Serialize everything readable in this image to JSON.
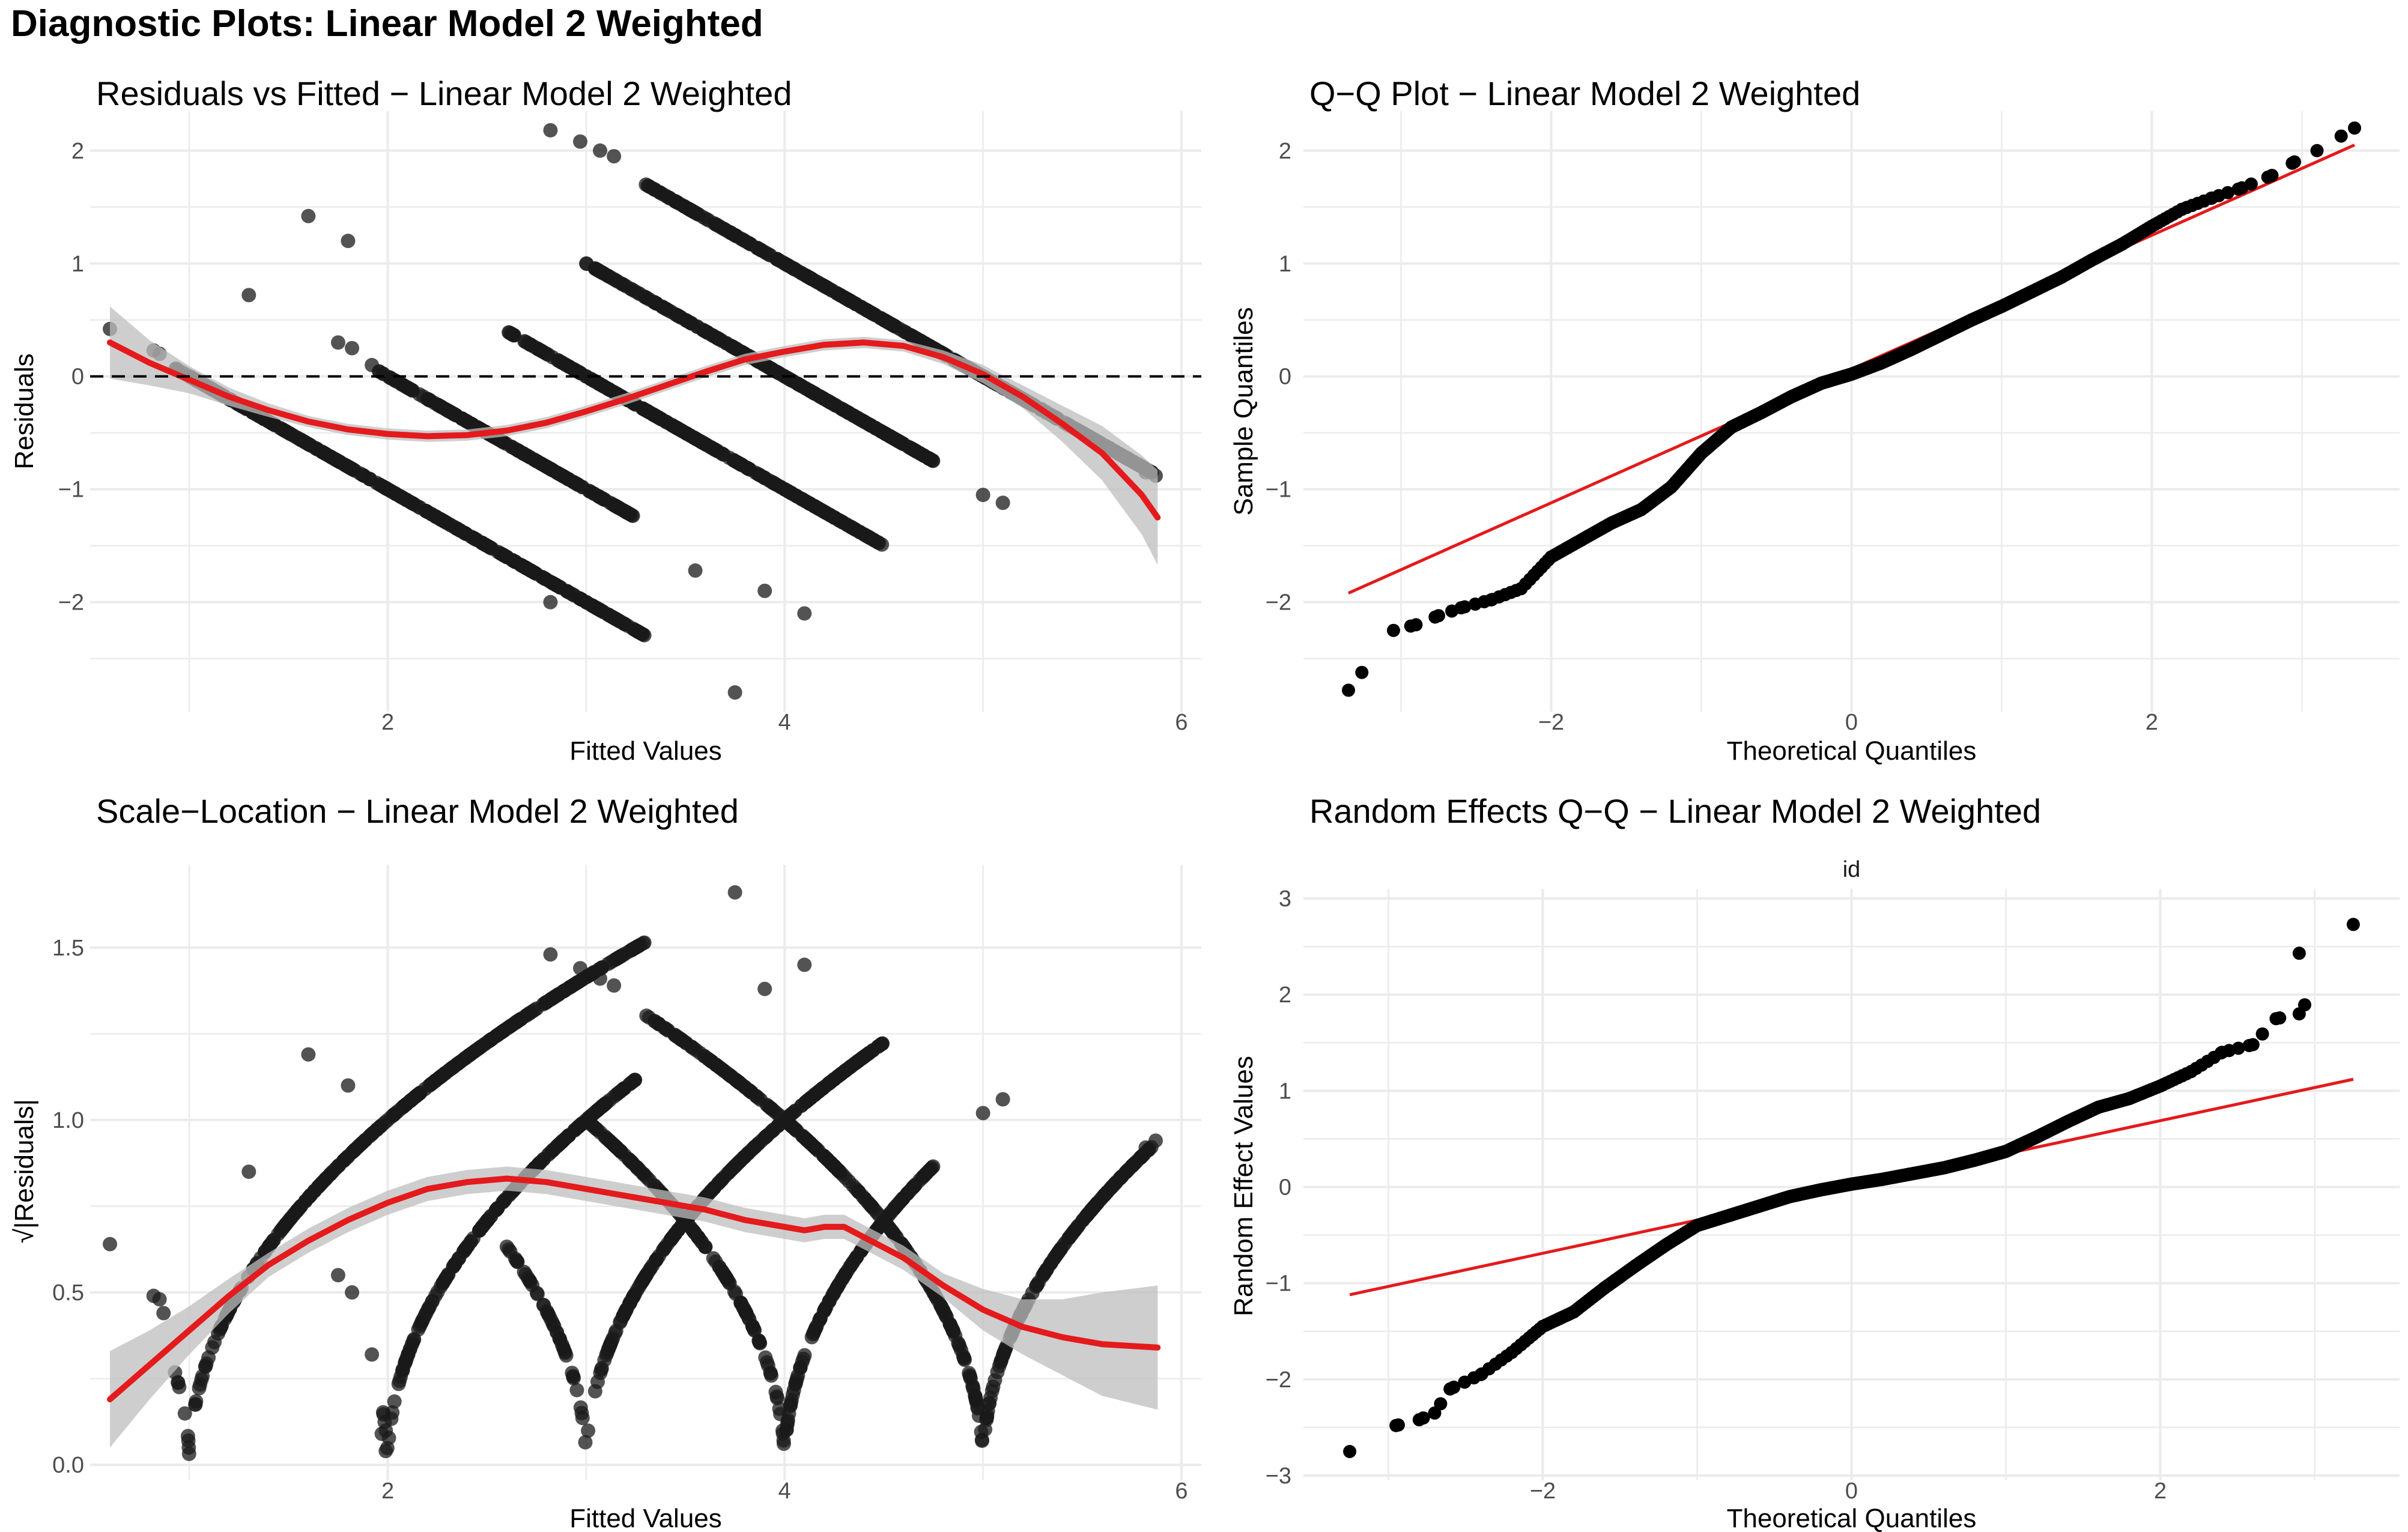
{
  "page_title": "Diagnostic Plots: Linear Model 2 Weighted",
  "colors": {
    "point": "#1a1a1a",
    "smooth": "#e41a1c",
    "band": "#bdbdbd",
    "grid": "#ebebeb",
    "refline": "#000000"
  },
  "chart_data": [
    {
      "id": "rvf",
      "type": "scatter",
      "title": "Residuals vs Fitted − Linear Model 2 Weighted",
      "xlabel": "Fitted Values",
      "ylabel": "Residuals",
      "xlim": [
        0.5,
        6.1
      ],
      "ylim": [
        -2.97,
        2.35
      ],
      "xticks": [
        2,
        4,
        6
      ],
      "xtick_labels": [
        "2",
        "4",
        "6"
      ],
      "yticks": [
        -2,
        -1,
        0,
        1,
        2
      ],
      "ytick_labels": [
        "−2",
        "−1",
        "0",
        "1",
        "2"
      ],
      "hline": 0,
      "stripes": [
        {
          "y": 1,
          "x": [
            0.92,
            3.3
          ]
        },
        {
          "y": 2,
          "x": [
            1.95,
            3.25
          ]
        },
        {
          "y": 3,
          "x": [
            2.6,
            4.5
          ]
        },
        {
          "y": 4,
          "x": [
            3.0,
            4.75
          ]
        },
        {
          "y": 5,
          "x": [
            3.3,
            5.85
          ]
        }
      ],
      "points": [
        [
          0.6,
          0.42
        ],
        [
          0.82,
          0.23
        ],
        [
          0.85,
          0.2
        ],
        [
          1.3,
          0.72
        ],
        [
          1.6,
          1.42
        ],
        [
          1.8,
          1.2
        ],
        [
          1.75,
          0.3
        ],
        [
          1.82,
          0.25
        ],
        [
          1.92,
          0.1
        ],
        [
          2.82,
          2.18
        ],
        [
          2.97,
          2.08
        ],
        [
          3.07,
          2.0
        ],
        [
          3.14,
          1.95
        ],
        [
          2.82,
          -2.0
        ],
        [
          3.25,
          -2.25
        ],
        [
          3.55,
          -1.72
        ],
        [
          3.75,
          -2.8
        ],
        [
          3.9,
          -1.9
        ],
        [
          4.1,
          -2.1
        ],
        [
          5.0,
          -1.05
        ],
        [
          5.1,
          -1.12
        ],
        [
          5.82,
          -0.85
        ],
        [
          5.87,
          -0.88
        ]
      ],
      "smooth": {
        "x": [
          0.6,
          0.8,
          1.0,
          1.2,
          1.4,
          1.6,
          1.8,
          2.0,
          2.2,
          2.4,
          2.6,
          2.8,
          3.0,
          3.2,
          3.4,
          3.6,
          3.8,
          4.0,
          4.2,
          4.4,
          4.6,
          4.8,
          5.0,
          5.2,
          5.4,
          5.6,
          5.8,
          5.88
        ],
        "y": [
          0.3,
          0.12,
          -0.03,
          -0.18,
          -0.3,
          -0.4,
          -0.47,
          -0.51,
          -0.53,
          -0.52,
          -0.48,
          -0.41,
          -0.31,
          -0.2,
          -0.08,
          0.04,
          0.15,
          0.22,
          0.28,
          0.3,
          0.27,
          0.17,
          0.02,
          -0.18,
          -0.42,
          -0.68,
          -1.05,
          -1.25
        ],
        "se": [
          0.32,
          0.2,
          0.12,
          0.08,
          0.06,
          0.05,
          0.05,
          0.05,
          0.05,
          0.05,
          0.05,
          0.05,
          0.05,
          0.05,
          0.05,
          0.05,
          0.05,
          0.05,
          0.05,
          0.05,
          0.05,
          0.06,
          0.08,
          0.1,
          0.16,
          0.24,
          0.35,
          0.42
        ]
      }
    },
    {
      "id": "qq",
      "type": "scatter",
      "title": "Q−Q Plot − Linear Model 2 Weighted",
      "xlabel": "Theoretical Quantiles",
      "ylabel": "Sample Quantiles",
      "xlim": [
        -3.65,
        3.65
      ],
      "ylim": [
        -2.97,
        2.35
      ],
      "xticks": [
        -2,
        0,
        2
      ],
      "xtick_labels": [
        "−2",
        "0",
        "2"
      ],
      "yticks": [
        -2,
        -1,
        0,
        1,
        2
      ],
      "ytick_labels": [
        "−2",
        "−1",
        "0",
        "1",
        "2"
      ],
      "n": 900,
      "curve": {
        "x": [
          -3.35,
          -3.05,
          -2.9,
          -2.75,
          -2.6,
          -2.4,
          -2.2,
          -2.0,
          -1.8,
          -1.6,
          -1.4,
          -1.2,
          -1.0,
          -0.8,
          -0.6,
          -0.4,
          -0.2,
          0,
          0.2,
          0.4,
          0.6,
          0.8,
          1.0,
          1.2,
          1.4,
          1.6,
          1.8,
          2.0,
          2.2,
          2.4,
          2.6,
          2.8,
          2.95,
          3.1,
          3.35
        ],
        "y": [
          -2.78,
          -2.25,
          -2.2,
          -2.12,
          -2.05,
          -1.98,
          -1.88,
          -1.6,
          -1.45,
          -1.3,
          -1.18,
          -0.98,
          -0.68,
          -0.45,
          -0.32,
          -0.18,
          -0.06,
          0.02,
          0.12,
          0.24,
          0.37,
          0.5,
          0.62,
          0.75,
          0.88,
          1.03,
          1.17,
          1.33,
          1.48,
          1.58,
          1.67,
          1.78,
          1.9,
          2.0,
          2.2
        ]
      },
      "refline": {
        "x": [
          -3.35,
          3.35
        ],
        "y": [
          -1.92,
          2.05
        ]
      }
    },
    {
      "id": "sl",
      "type": "scatter",
      "title": "Scale−Location − Linear Model 2 Weighted",
      "xlabel": "Fitted Values",
      "ylabel": "√|Residuals|",
      "xlim": [
        0.5,
        6.1
      ],
      "ylim": [
        -0.045,
        1.74
      ],
      "xticks": [
        2,
        4,
        6
      ],
      "xtick_labels": [
        "2",
        "4",
        "6"
      ],
      "yticks": [
        0,
        0.5,
        1,
        1.5
      ],
      "ytick_labels": [
        "0.0",
        "0.5",
        "1.0",
        "1.5"
      ],
      "stripes": [
        {
          "y": 1,
          "x": [
            0.92,
            3.3
          ]
        },
        {
          "y": 2,
          "x": [
            1.95,
            3.25
          ]
        },
        {
          "y": 3,
          "x": [
            2.6,
            4.5
          ]
        },
        {
          "y": 4,
          "x": [
            3.0,
            4.75
          ]
        },
        {
          "y": 5,
          "x": [
            3.3,
            5.85
          ]
        }
      ],
      "points": [
        [
          0.6,
          0.64
        ],
        [
          0.82,
          0.49
        ],
        [
          0.85,
          0.48
        ],
        [
          0.87,
          0.44
        ],
        [
          1.3,
          0.85
        ],
        [
          1.6,
          1.19
        ],
        [
          1.8,
          1.1
        ],
        [
          1.75,
          0.55
        ],
        [
          1.82,
          0.5
        ],
        [
          1.92,
          0.32
        ],
        [
          1.97,
          0.09
        ],
        [
          1.99,
          0.04
        ],
        [
          2.82,
          1.48
        ],
        [
          2.97,
          1.44
        ],
        [
          3.07,
          1.41
        ],
        [
          3.14,
          1.39
        ],
        [
          3.25,
          1.5
        ],
        [
          3.75,
          1.66
        ],
        [
          4.1,
          1.45
        ],
        [
          3.9,
          1.38
        ],
        [
          5.0,
          1.02
        ],
        [
          5.1,
          1.06
        ],
        [
          5.82,
          0.92
        ],
        [
          5.87,
          0.94
        ]
      ],
      "smooth": {
        "x": [
          0.6,
          0.8,
          1.0,
          1.2,
          1.4,
          1.6,
          1.8,
          2.0,
          2.2,
          2.4,
          2.6,
          2.8,
          3.0,
          3.2,
          3.4,
          3.6,
          3.8,
          4.0,
          4.1,
          4.2,
          4.3,
          4.4,
          4.6,
          4.8,
          5.0,
          5.2,
          5.4,
          5.6,
          5.88
        ],
        "y": [
          0.19,
          0.29,
          0.39,
          0.49,
          0.58,
          0.65,
          0.71,
          0.76,
          0.8,
          0.82,
          0.83,
          0.82,
          0.8,
          0.78,
          0.76,
          0.74,
          0.71,
          0.69,
          0.68,
          0.69,
          0.69,
          0.66,
          0.6,
          0.52,
          0.45,
          0.4,
          0.37,
          0.35,
          0.34
        ]
      }
    },
    {
      "id": "re",
      "type": "scatter",
      "title": "Random Effects Q−Q − Linear Model 2 Weighted",
      "subtitle": "id",
      "xlabel": "Theoretical Quantiles",
      "ylabel": "Random Effect Values",
      "xlim": [
        -3.55,
        3.55
      ],
      "ylim": [
        -3.05,
        3.1
      ],
      "xticks": [
        -2,
        0,
        2
      ],
      "xtick_labels": [
        "−2",
        "0",
        "2"
      ],
      "yticks": [
        -3,
        -2,
        -1,
        0,
        1,
        2,
        3
      ],
      "ytick_labels": [
        "−3",
        "−2",
        "−1",
        "0",
        "1",
        "2",
        "3"
      ],
      "n": 900,
      "curve": {
        "x": [
          -3.25,
          -2.95,
          -2.8,
          -2.7,
          -2.6,
          -2.4,
          -2.2,
          -2.0,
          -1.8,
          -1.6,
          -1.4,
          -1.2,
          -1.0,
          -0.8,
          -0.6,
          -0.4,
          -0.2,
          0,
          0.2,
          0.4,
          0.6,
          0.8,
          1.0,
          1.2,
          1.4,
          1.6,
          1.8,
          2.0,
          2.2,
          2.4,
          2.6,
          2.75,
          2.9,
          3.25
        ],
        "y": [
          -2.75,
          -2.48,
          -2.42,
          -2.35,
          -2.1,
          -1.95,
          -1.72,
          -1.45,
          -1.3,
          -1.05,
          -0.82,
          -0.6,
          -0.4,
          -0.3,
          -0.2,
          -0.1,
          -0.03,
          0.03,
          0.08,
          0.14,
          0.2,
          0.28,
          0.37,
          0.52,
          0.68,
          0.83,
          0.92,
          1.05,
          1.2,
          1.4,
          1.48,
          1.75,
          1.8,
          2.73
        ]
      },
      "extra_points": [
        [
          2.9,
          2.43
        ]
      ],
      "refline": {
        "x": [
          -3.25,
          3.25
        ],
        "y": [
          -1.12,
          1.12
        ]
      }
    }
  ]
}
